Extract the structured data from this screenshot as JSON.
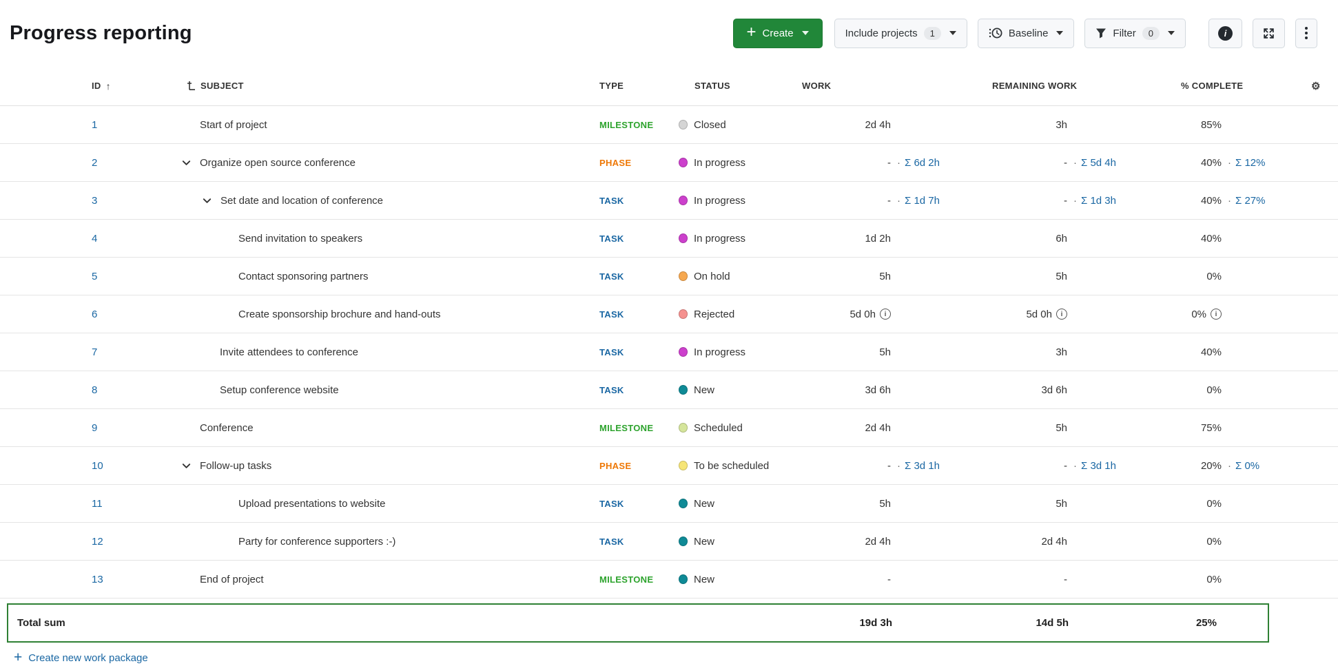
{
  "title": "Progress reporting",
  "toolbar": {
    "create_label": "Create",
    "include_projects_label": "Include projects",
    "include_projects_count": "1",
    "baseline_label": "Baseline",
    "filter_label": "Filter",
    "filter_count": "0"
  },
  "table": {
    "headers": {
      "id": "ID",
      "subject": "SUBJECT",
      "type": "TYPE",
      "status": "STATUS",
      "work": "WORK",
      "remaining": "REMAINING WORK",
      "complete": "% COMPLETE"
    },
    "sum_prefix": "Σ",
    "rows": [
      {
        "id": "1",
        "subject": "Start of project",
        "pad": 40,
        "chevron": false,
        "type": "MILESTONE",
        "type_key": "milestone",
        "status": "Closed",
        "status_key": "closed",
        "work": "2d 4h",
        "work_sum": "",
        "remaining": "3h",
        "remaining_sum": "",
        "complete": "85%",
        "complete_sum": "",
        "info": false
      },
      {
        "id": "2",
        "subject": "Organize open source conference",
        "pad": 13,
        "chevron": true,
        "type": "PHASE",
        "type_key": "phase",
        "status": "In progress",
        "status_key": "in_progress",
        "work": "-",
        "work_sum": "6d 2h",
        "remaining": "-",
        "remaining_sum": "5d 4h",
        "complete": "40%",
        "complete_sum": "12%",
        "info": false
      },
      {
        "id": "3",
        "subject": "Set date and location of conference",
        "pad": 43,
        "chevron": true,
        "type": "TASK",
        "type_key": "task",
        "status": "In progress",
        "status_key": "in_progress",
        "work": "-",
        "work_sum": "1d 7h",
        "remaining": "-",
        "remaining_sum": "1d 3h",
        "complete": "40%",
        "complete_sum": "27%",
        "info": false
      },
      {
        "id": "4",
        "subject": "Send invitation to speakers",
        "pad": 96,
        "chevron": false,
        "type": "TASK",
        "type_key": "task",
        "status": "In progress",
        "status_key": "in_progress",
        "work": "1d 2h",
        "work_sum": "",
        "remaining": "6h",
        "remaining_sum": "",
        "complete": "40%",
        "complete_sum": "",
        "info": false
      },
      {
        "id": "5",
        "subject": "Contact sponsoring partners",
        "pad": 96,
        "chevron": false,
        "type": "TASK",
        "type_key": "task",
        "status": "On hold",
        "status_key": "on_hold",
        "work": "5h",
        "work_sum": "",
        "remaining": "5h",
        "remaining_sum": "",
        "complete": "0%",
        "complete_sum": "",
        "info": false
      },
      {
        "id": "6",
        "subject": "Create sponsorship brochure and hand-outs",
        "pad": 96,
        "chevron": false,
        "type": "TASK",
        "type_key": "task",
        "status": "Rejected",
        "status_key": "rejected",
        "work": "5d 0h",
        "work_sum": "",
        "remaining": "5d 0h",
        "remaining_sum": "",
        "complete": "0%",
        "complete_sum": "",
        "info": true
      },
      {
        "id": "7",
        "subject": "Invite attendees to conference",
        "pad": 69,
        "chevron": false,
        "type": "TASK",
        "type_key": "task",
        "status": "In progress",
        "status_key": "in_progress",
        "work": "5h",
        "work_sum": "",
        "remaining": "3h",
        "remaining_sum": "",
        "complete": "40%",
        "complete_sum": "",
        "info": false
      },
      {
        "id": "8",
        "subject": "Setup conference website",
        "pad": 69,
        "chevron": false,
        "type": "TASK",
        "type_key": "task",
        "status": "New",
        "status_key": "new",
        "work": "3d 6h",
        "work_sum": "",
        "remaining": "3d 6h",
        "remaining_sum": "",
        "complete": "0%",
        "complete_sum": "",
        "info": false
      },
      {
        "id": "9",
        "subject": "Conference",
        "pad": 40,
        "chevron": false,
        "type": "MILESTONE",
        "type_key": "milestone",
        "status": "Scheduled",
        "status_key": "scheduled",
        "work": "2d 4h",
        "work_sum": "",
        "remaining": "5h",
        "remaining_sum": "",
        "complete": "75%",
        "complete_sum": "",
        "info": false
      },
      {
        "id": "10",
        "subject": "Follow-up tasks",
        "pad": 13,
        "chevron": true,
        "type": "PHASE",
        "type_key": "phase",
        "status": "To be scheduled",
        "status_key": "to_be_scheduled",
        "work": "-",
        "work_sum": "3d 1h",
        "remaining": "-",
        "remaining_sum": "3d 1h",
        "complete": "20%",
        "complete_sum": "0%",
        "info": false
      },
      {
        "id": "11",
        "subject": "Upload presentations to website",
        "pad": 96,
        "chevron": false,
        "type": "TASK",
        "type_key": "task",
        "status": "New",
        "status_key": "new",
        "work": "5h",
        "work_sum": "",
        "remaining": "5h",
        "remaining_sum": "",
        "complete": "0%",
        "complete_sum": "",
        "info": false
      },
      {
        "id": "12",
        "subject": "Party for conference supporters :-)",
        "pad": 96,
        "chevron": false,
        "type": "TASK",
        "type_key": "task",
        "status": "New",
        "status_key": "new",
        "work": "2d 4h",
        "work_sum": "",
        "remaining": "2d 4h",
        "remaining_sum": "",
        "complete": "0%",
        "complete_sum": "",
        "info": false
      },
      {
        "id": "13",
        "subject": "End of project",
        "pad": 40,
        "chevron": false,
        "type": "MILESTONE",
        "type_key": "milestone",
        "status": "New",
        "status_key": "new",
        "work": "-",
        "work_sum": "",
        "remaining": "-",
        "remaining_sum": "",
        "complete": "0%",
        "complete_sum": "",
        "info": false
      }
    ],
    "total": {
      "label": "Total sum",
      "work": "19d 3h",
      "remaining": "14d 5h",
      "complete": "25%"
    }
  },
  "footer": {
    "create_link_label": "Create new work package"
  },
  "colors": {
    "type": {
      "milestone": "#2da32d",
      "phase": "#ee7704",
      "task": "#1a67a3"
    },
    "status": {
      "closed": "#d5d5d5",
      "in_progress": "#cc40cc",
      "on_hold": "#f6a850",
      "rejected": "#f5918f",
      "new": "#0f8a96",
      "scheduled": "#d5e59b",
      "to_be_scheduled": "#f6e577"
    },
    "link": "#1a67a3",
    "create_button": "#218739",
    "total_border": "#2e8033"
  }
}
